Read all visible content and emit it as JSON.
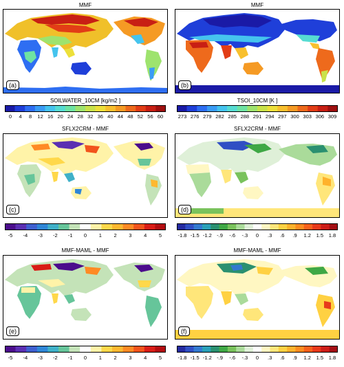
{
  "panels": [
    {
      "id": "a",
      "title": "MMF",
      "label": "(a)",
      "field": "soil"
    },
    {
      "id": "b",
      "title": "MMF",
      "label": "(b)",
      "field": "tsoi"
    },
    {
      "id": "c",
      "title": "SFLX2CRM - MMF",
      "label": "(c)",
      "field": "diffA"
    },
    {
      "id": "d",
      "title": "SFLX2CRM - MMF",
      "label": "(d)",
      "field": "diffB"
    },
    {
      "id": "e",
      "title": "MMF-MAML - MMF",
      "label": "(e)",
      "field": "diffA2"
    },
    {
      "id": "f",
      "title": "MMF-MAML - MMF",
      "label": "(f)",
      "field": "diffB2"
    }
  ],
  "colorbars": {
    "soilwater": {
      "title": "SOILWATER_10CM [kg/m2 ]",
      "ticks": [
        "0",
        "4",
        "8",
        "12",
        "16",
        "20",
        "24",
        "28",
        "32",
        "36",
        "40",
        "44",
        "48",
        "52",
        "56",
        "60"
      ]
    },
    "tsoi": {
      "title": "TSOI_10CM [K ]",
      "ticks": [
        "273",
        "276",
        "279",
        "282",
        "285",
        "288",
        "291",
        "294",
        "297",
        "300",
        "303",
        "306",
        "309"
      ]
    },
    "diff_water": {
      "ticks": [
        "-5",
        "-4",
        "-3",
        "-2",
        "-1",
        "0",
        "1",
        "2",
        "3",
        "4",
        "5"
      ]
    },
    "diff_temp": {
      "ticks": [
        "-1.8",
        "-1.5",
        "-1.2",
        "-.9",
        "-.6",
        "-.3",
        "0",
        ".3",
        ".6",
        ".9",
        "1.2",
        "1.5",
        "1.8"
      ]
    }
  },
  "colors": {
    "rainbow": [
      "#1a1aa6",
      "#1f3fd9",
      "#2e6ef2",
      "#3a9cf5",
      "#45c4ee",
      "#56dcd2",
      "#6ee3a3",
      "#9ee36e",
      "#c9e24a",
      "#ede03a",
      "#f8c02e",
      "#f59a24",
      "#ee6a1c",
      "#e23d16",
      "#c81f14",
      "#9e1010"
    ],
    "diverging": [
      "#4b0c8c",
      "#5a2fb2",
      "#3e5fcf",
      "#2f86d6",
      "#3fb0c8",
      "#66c59a",
      "#c4e3b8",
      "#ffffff",
      "#fff3a8",
      "#ffd84a",
      "#ffb830",
      "#ff8a24",
      "#f2541c",
      "#d91d16",
      "#b30c10"
    ],
    "diverging_temp": [
      "#242aa0",
      "#2f4fc4",
      "#3279cf",
      "#2aa0b8",
      "#2a9070",
      "#3fa845",
      "#79c25c",
      "#aadb9a",
      "#dff0d8",
      "#ffffff",
      "#fff7c2",
      "#ffe67a",
      "#ffd142",
      "#ffb22c",
      "#ff8c20",
      "#f8611b",
      "#e8391a",
      "#cd1d18",
      "#a40e14"
    ],
    "ocean_fill": "#ffffff",
    "land_base_a": "#2fa0e8",
    "frame": "#000000"
  }
}
